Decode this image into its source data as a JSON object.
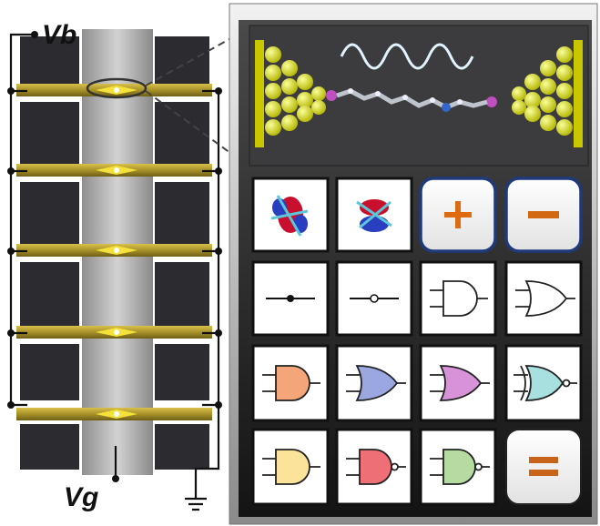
{
  "labels": {
    "vb": "Vb",
    "vg": "Vg"
  }
}
